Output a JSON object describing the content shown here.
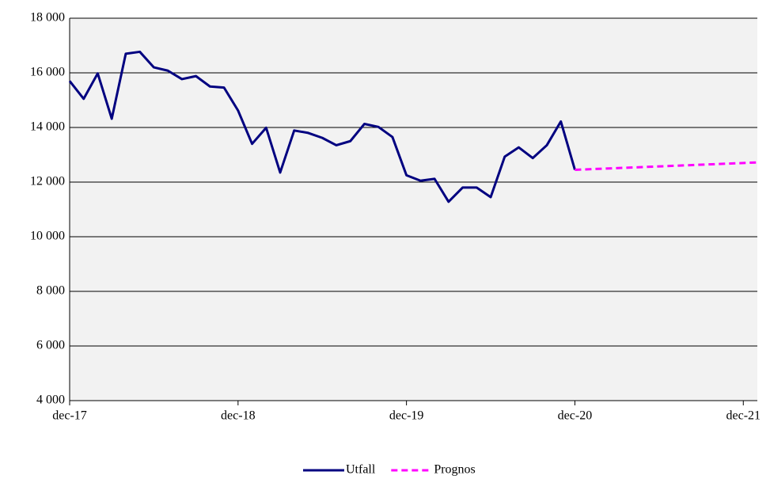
{
  "chart_data": {
    "type": "line",
    "series": [
      {
        "name": "Utfall",
        "color": "#000080",
        "line_style": "solid",
        "x": [
          0,
          1,
          2,
          3,
          4,
          5,
          6,
          7,
          8,
          9,
          10,
          11,
          12,
          13,
          14,
          15,
          16,
          17,
          18,
          19,
          20,
          21,
          22,
          23,
          24,
          25,
          26,
          27,
          28,
          29,
          30,
          31,
          32,
          33,
          34,
          35,
          36
        ],
        "values": [
          15700,
          15050,
          15980,
          14320,
          16700,
          16770,
          16200,
          16080,
          15770,
          15880,
          15500,
          15460,
          14620,
          13400,
          13990,
          12350,
          13890,
          13800,
          13620,
          13350,
          13500,
          14130,
          14020,
          13650,
          12250,
          12050,
          12120,
          11280,
          11800,
          11800,
          11450,
          12930,
          13270,
          12880,
          13350,
          14220,
          12450
        ]
      },
      {
        "name": "Prognos",
        "color": "#ff00ff",
        "line_style": "dashed",
        "x": [
          36,
          49
        ],
        "values": [
          12450,
          12720
        ]
      }
    ],
    "xlim": [
      0,
      49
    ],
    "xticks": [
      {
        "value": 0,
        "label": "dec-17"
      },
      {
        "value": 12,
        "label": "dec-18"
      },
      {
        "value": 24,
        "label": "dec-19"
      },
      {
        "value": 36,
        "label": "dec-20"
      },
      {
        "value": 48,
        "label": "dec-21"
      }
    ],
    "ylim": [
      4000,
      18000
    ],
    "yticks": [
      {
        "value": 4000,
        "label": "4 000"
      },
      {
        "value": 6000,
        "label": "6 000"
      },
      {
        "value": 8000,
        "label": "8 000"
      },
      {
        "value": 10000,
        "label": "10 000"
      },
      {
        "value": 12000,
        "label": "12 000"
      },
      {
        "value": 14000,
        "label": "14 000"
      },
      {
        "value": 16000,
        "label": "16 000"
      },
      {
        "value": 18000,
        "label": "18 000"
      }
    ],
    "grid": true,
    "legend": "bottom"
  }
}
